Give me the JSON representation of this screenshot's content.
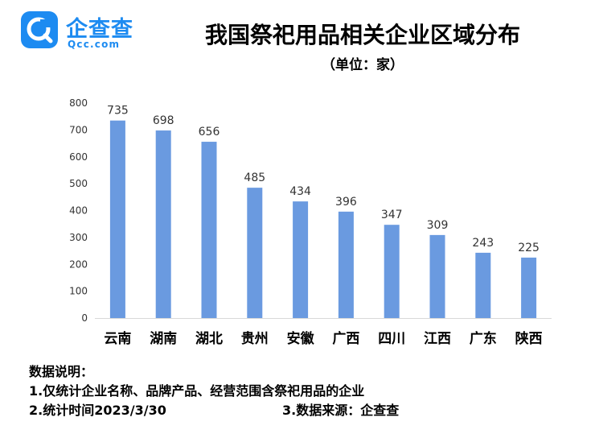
{
  "brand": {
    "name_cn": "企查查",
    "name_en": "Qcc.com",
    "color": "#1d8bf1"
  },
  "header": {
    "title": "我国祭祀用品相关企业区域分布",
    "unit": "（单位：家）"
  },
  "chart_data": {
    "type": "bar",
    "categories": [
      "云南",
      "湖南",
      "湖北",
      "贵州",
      "安徽",
      "广西",
      "四川",
      "江西",
      "广东",
      "陕西"
    ],
    "values": [
      735,
      698,
      656,
      485,
      434,
      396,
      347,
      309,
      243,
      225
    ],
    "ylim": [
      0,
      800
    ],
    "yticks": [
      0,
      100,
      200,
      300,
      400,
      500,
      600,
      700,
      800
    ],
    "grid": false,
    "bar_color": "#6a9ae0"
  },
  "notes": {
    "heading": "数据说明：",
    "line1": "1.仅统计企业名称、品牌产品、经营范围含祭祀用品的企业",
    "line2_left": "2.统计时间2023/3/30",
    "line2_right": "3.数据来源：企查查"
  }
}
